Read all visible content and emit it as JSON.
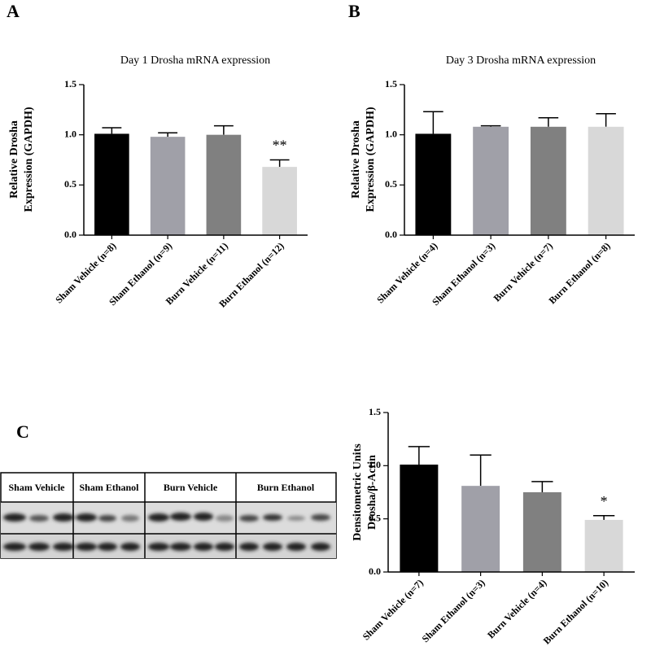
{
  "panels": [
    "A",
    "B",
    "C"
  ],
  "blot": {
    "labels": [
      "Sham Vehicle",
      "Sham Ethanol",
      "Burn Vehicle",
      "Burn Ethanol"
    ]
  },
  "chart_data": [
    {
      "type": "bar",
      "title": "Day 1 Drosha mRNA expression",
      "ylabel": [
        "Relative Drosha",
        "Expression (GAPDH)"
      ],
      "categories": [
        "Sham Vehicle (n=8)",
        "Sham Ethanol (n=9)",
        "Burn Vehicle (n=11)",
        "Burn Ethanol (n=12)"
      ],
      "values": [
        1.01,
        0.98,
        1.0,
        0.68
      ],
      "errors": [
        0.06,
        0.04,
        0.09,
        0.07
      ],
      "colors": [
        "#000000",
        "#a0a0a8",
        "#808080",
        "#d8d8d8"
      ],
      "ylim": [
        0,
        1.5
      ],
      "yticks": [
        {
          "value": 0,
          "label": "0.0"
        },
        0.5,
        {
          "value": 1,
          "label": "1.0"
        },
        1.5
      ],
      "annotations": [
        {
          "text": "**",
          "category": "Burn Ethanol (n=12)"
        }
      ]
    },
    {
      "type": "bar",
      "title": "Day 3 Drosha mRNA expression",
      "ylabel": [
        "Relative Drosha",
        "Expression (GAPDH)"
      ],
      "categories": [
        "Sham Vehicle (n=4)",
        "Sham Ethanol (n=3)",
        "Burn Vehicle (n=7)",
        "Burn Ethanol (n=8)"
      ],
      "values": [
        1.01,
        1.08,
        1.08,
        1.08
      ],
      "errors": [
        0.22,
        0.01,
        0.09,
        0.13
      ],
      "colors": [
        "#000000",
        "#a0a0a8",
        "#808080",
        "#d8d8d8"
      ],
      "ylim": [
        0,
        1.5
      ],
      "yticks": [
        {
          "value": 0,
          "label": "0.0"
        },
        0.5,
        {
          "value": 1,
          "label": "1.0"
        },
        1.5
      ]
    },
    {
      "type": "bar",
      "ylabel": [
        "Densitometric Units",
        "Drosha/β-Actin"
      ],
      "categories": [
        "Sham Vehicle (n=7)",
        "Sham Ethanol (n=3)",
        "Burn Vehicle (n=4)",
        "Burn Ethanol (n=10)"
      ],
      "values": [
        1.01,
        0.81,
        0.75,
        0.49
      ],
      "errors": [
        0.17,
        0.29,
        0.1,
        0.04
      ],
      "colors": [
        "#000000",
        "#a0a0a8",
        "#808080",
        "#d8d8d8"
      ],
      "ylim": [
        0,
        1.5
      ],
      "yticks": [
        {
          "value": 0,
          "label": "0.0"
        },
        0.5,
        {
          "value": 1,
          "label": "1.0"
        },
        1.5
      ],
      "annotations": [
        {
          "text": "*",
          "category": "Burn Ethanol (n=10)"
        }
      ]
    }
  ]
}
